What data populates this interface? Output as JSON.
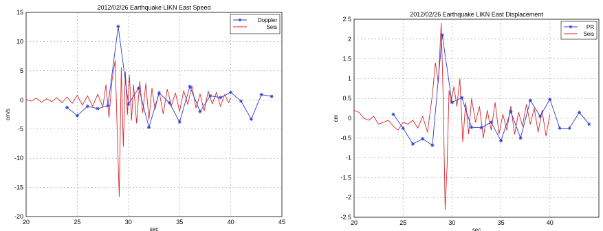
{
  "chart_data": [
    {
      "type": "line",
      "title": "2012/02/26 Earthquake LIKN East Speed",
      "xlabel": "sec",
      "ylabel": "cm/s",
      "xlim": [
        20,
        45
      ],
      "ylim": [
        -20,
        15
      ],
      "xticks": [
        20,
        25,
        30,
        35,
        40,
        45
      ],
      "yticks": [
        -20,
        -15,
        -10,
        -5,
        0,
        5,
        10,
        15
      ],
      "grid": true,
      "legend_position": "top-right",
      "series": [
        {
          "name": "Doppler",
          "color": "#2b3bd6",
          "marker": "star",
          "x": [
            24,
            25,
            26,
            27,
            28,
            29,
            30,
            31,
            32,
            33,
            34,
            35,
            36,
            37,
            38,
            39,
            40,
            41,
            42,
            43,
            44
          ],
          "y": [
            -1.3,
            -2.7,
            -1.1,
            -1.5,
            -1.0,
            12.6,
            -0.7,
            2.0,
            -4.7,
            1.2,
            -0.5,
            -3.8,
            2.3,
            -2.0,
            0.7,
            0.4,
            1.3,
            -0.2,
            -3.3,
            0.9,
            0.6
          ]
        },
        {
          "name": "Seis",
          "color": "#d8262b",
          "x": [
            20,
            20.5,
            21,
            21.5,
            22,
            22.5,
            23,
            23.5,
            24,
            24.5,
            25,
            25.5,
            26,
            26.5,
            27,
            27.5,
            27.8,
            28.1,
            28.4,
            28.7,
            28.9,
            29.1,
            29.3,
            29.5,
            29.7,
            29.9,
            30.1,
            30.3,
            30.5,
            30.8,
            31.1,
            31.4,
            31.7,
            32,
            32.3,
            32.6,
            33,
            33.4,
            33.8,
            34.2,
            34.6,
            35,
            35.4,
            35.8,
            36.2,
            36.6,
            37,
            37.4,
            37.8,
            38.2,
            38.6,
            39,
            39.4,
            39.8,
            40
          ],
          "y": [
            0.1,
            -0.2,
            0.3,
            -0.4,
            0.2,
            -0.3,
            0.4,
            -0.5,
            0.5,
            -0.6,
            0.8,
            -0.9,
            0.7,
            -1.1,
            1.0,
            -1.2,
            2.6,
            -3.0,
            3.4,
            6.8,
            -5.0,
            -16.6,
            5.5,
            -8.0,
            4.8,
            -2.5,
            4.2,
            -3.5,
            2.6,
            -4.0,
            3.2,
            -2.2,
            2.8,
            -3.4,
            2.0,
            -1.6,
            1.5,
            -2.4,
            1.8,
            -1.0,
            1.2,
            -2.0,
            1.6,
            -0.8,
            2.4,
            -1.4,
            1.0,
            -1.9,
            1.5,
            -0.7,
            1.3,
            -1.1,
            0.9,
            -0.5,
            0.4
          ]
        }
      ]
    },
    {
      "type": "line",
      "title": "2012/02/26 Earthquake LIKN East Displacement",
      "xlabel": "sec",
      "ylabel": "cm",
      "xlim": [
        20,
        45
      ],
      "ylim": [
        -2.5,
        2.5
      ],
      "xticks": [
        20,
        25,
        30,
        35,
        40
      ],
      "yticks": [
        -2.5,
        -2,
        -1.5,
        -1,
        -0.5,
        0,
        0.5,
        1,
        1.5,
        2,
        2.5
      ],
      "grid": true,
      "legend_position": "top-right",
      "series": [
        {
          "name": "PR",
          "color": "#2b3bd6",
          "marker": "star",
          "x": [
            24,
            25,
            26,
            27,
            28,
            29,
            30,
            31,
            32,
            33,
            34,
            35,
            36,
            37,
            38,
            39,
            40,
            41,
            42,
            43,
            44
          ],
          "y": [
            0.1,
            -0.25,
            -0.65,
            -0.52,
            -0.68,
            2.1,
            0.4,
            0.52,
            -0.23,
            -0.24,
            -0.1,
            -0.57,
            0.17,
            -0.5,
            0.45,
            0.05,
            0.48,
            -0.25,
            -0.25,
            0.15,
            -0.15
          ]
        },
        {
          "name": "Seis",
          "color": "#d8262b",
          "x": [
            20,
            20.5,
            21,
            21.5,
            22,
            22.5,
            23,
            23.5,
            24,
            24.5,
            25,
            25.5,
            26,
            26.5,
            27,
            27.5,
            28,
            28.3,
            28.6,
            28.9,
            29.1,
            29.3,
            29.5,
            29.7,
            29.9,
            30.2,
            30.5,
            30.8,
            31.1,
            31.4,
            31.7,
            32,
            32.4,
            32.8,
            33.2,
            33.6,
            34,
            34.4,
            34.8,
            35.2,
            35.6,
            36,
            36.4,
            36.8,
            37.2,
            37.6,
            38,
            38.4,
            38.8,
            39.2,
            39.6,
            40
          ],
          "y": [
            0.2,
            0.15,
            0.0,
            -0.05,
            0.05,
            -0.15,
            -0.1,
            -0.05,
            -0.2,
            -0.3,
            -0.1,
            -0.15,
            -0.05,
            -0.25,
            0.05,
            -0.35,
            0.6,
            1.4,
            0.9,
            2.4,
            0.5,
            -2.3,
            -1.2,
            0.7,
            0.4,
            0.8,
            0.3,
            1.0,
            -0.6,
            0.4,
            -0.4,
            0.5,
            -0.1,
            0.3,
            -0.5,
            0.2,
            -0.3,
            0.4,
            -0.4,
            0.1,
            -0.3,
            0.3,
            -0.4,
            0.15,
            -0.2,
            0.35,
            -0.15,
            0.25,
            -0.35,
            0.2,
            -0.45,
            0.1
          ]
        }
      ]
    }
  ]
}
